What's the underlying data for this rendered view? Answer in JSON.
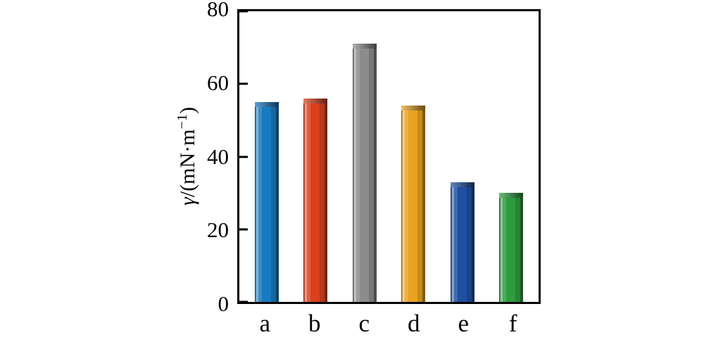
{
  "chart_data": {
    "type": "bar",
    "categories": [
      "a",
      "b",
      "c",
      "d",
      "e",
      "f"
    ],
    "values": [
      55,
      56,
      71,
      54,
      33,
      30
    ],
    "colors": [
      "#1879bf",
      "#d9411e",
      "#8c8c8c",
      "#e9a321",
      "#1e4fa0",
      "#2e9b3e"
    ],
    "title": "",
    "xlabel": "",
    "ylabel": "γ/(mN·m⁻¹)",
    "ylim": [
      0,
      80
    ],
    "yticks": [
      0,
      20,
      40,
      60,
      80
    ],
    "grid": false,
    "legend": false
  },
  "y_axis": {
    "label_symbol": "γ",
    "label_unit": "/(mN·m",
    "label_sup": "−1",
    "label_close": ")"
  }
}
